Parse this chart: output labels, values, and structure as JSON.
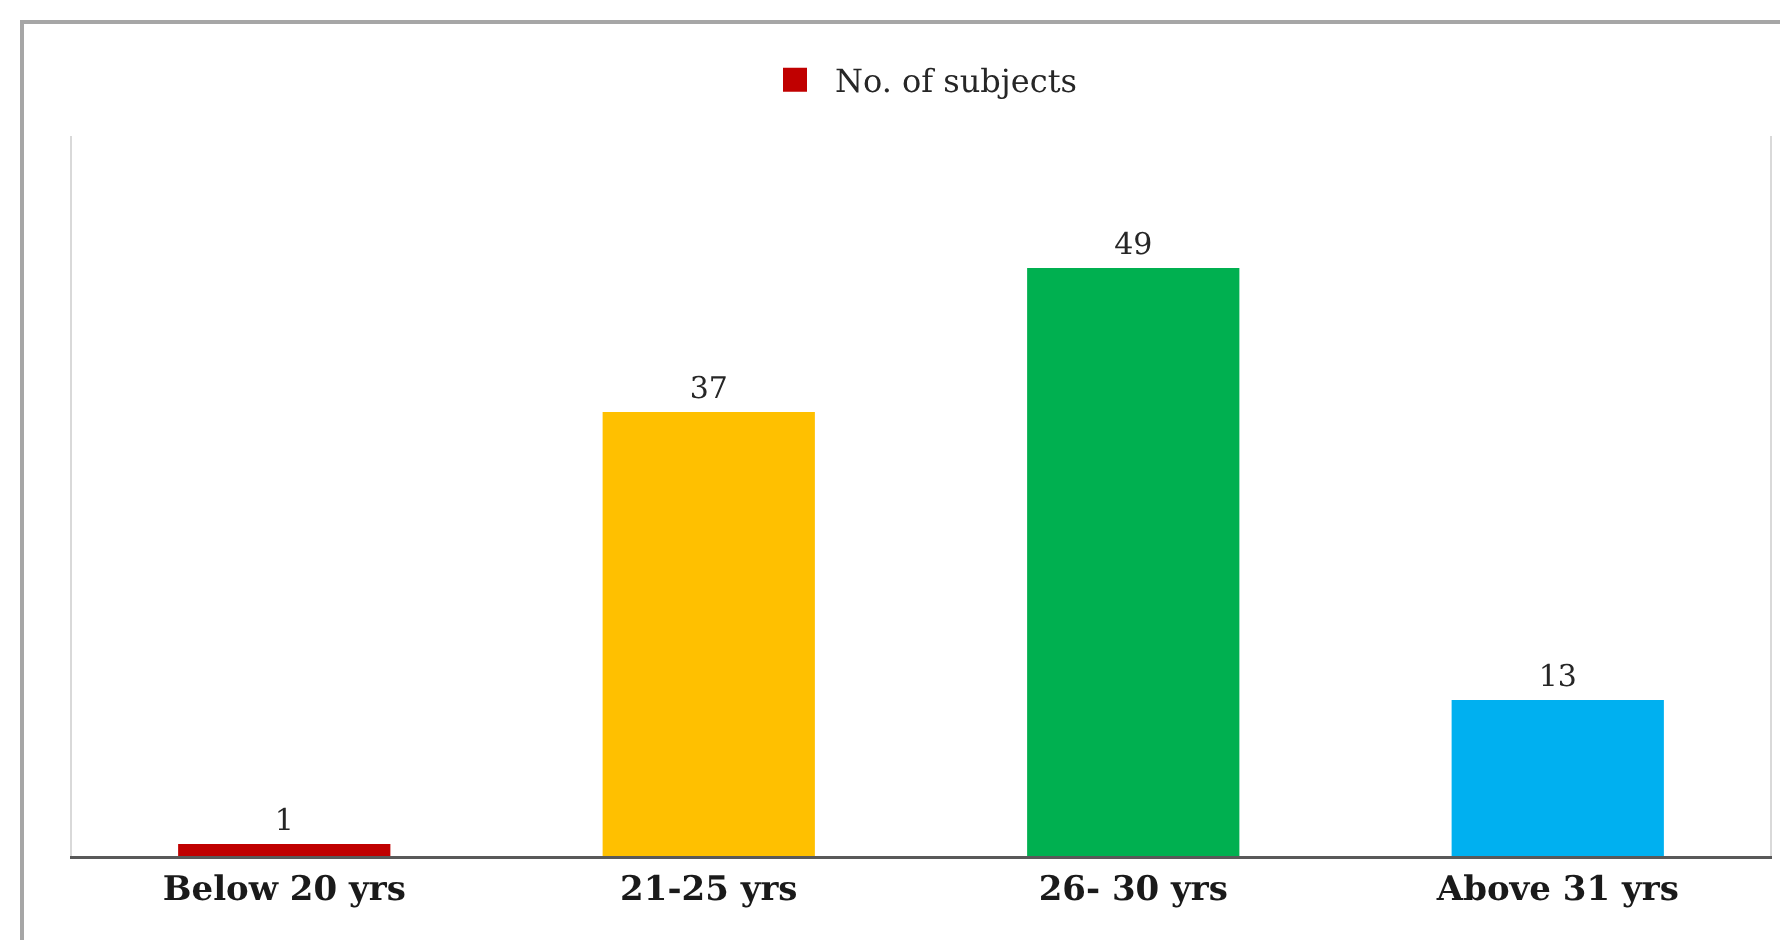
{
  "chart_data": {
    "type": "bar",
    "categories": [
      "Below 20 yrs",
      "21-25 yrs",
      "26- 30 yrs",
      "Above 31 yrs"
    ],
    "series": [
      {
        "name": "No. of subjects",
        "colors": [
          "#c00000",
          "#ffc000",
          "#00b050",
          "#00b0f0"
        ],
        "values": [
          1,
          37,
          49,
          13
        ]
      }
    ],
    "ylim": [
      0,
      60
    ],
    "data_labels": true,
    "legend": "top",
    "tick_labels": "x"
  }
}
